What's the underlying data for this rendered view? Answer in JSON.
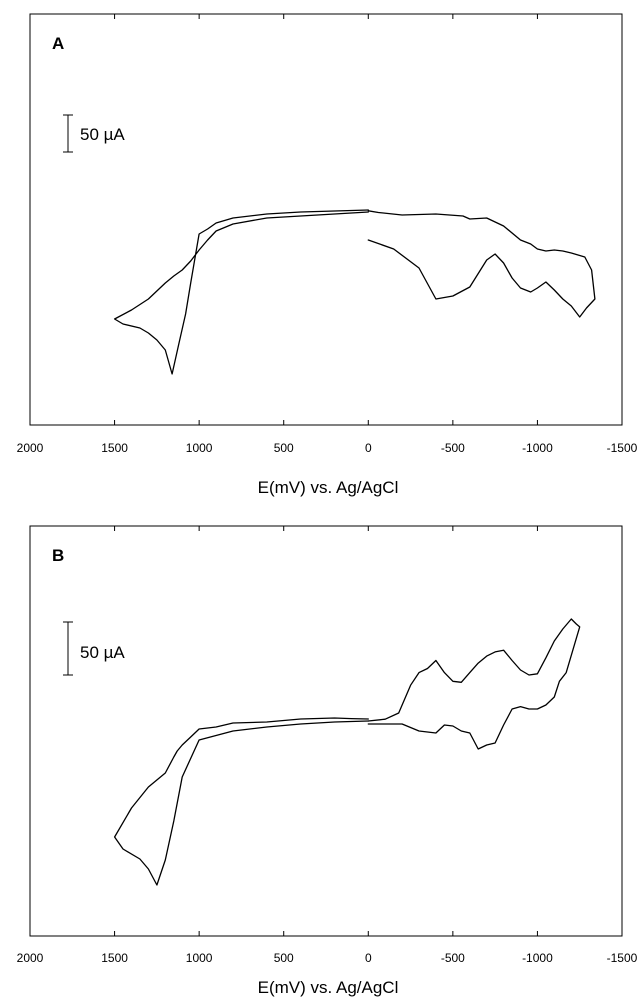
{
  "chart_data": [
    {
      "type": "line",
      "panel_label": "A",
      "xlabel": "E(mV) vs. Ag/AgCl",
      "xlim": [
        2000,
        -1500
      ],
      "x_ticks": [
        "2000",
        "1500",
        "1000",
        "500",
        "0",
        "-500",
        "-1000",
        "-1500"
      ],
      "scale_bar": {
        "label": "50 µA",
        "value_uA": 50
      },
      "grid": false,
      "series": [
        {
          "x": [
            0,
            -60,
            -200,
            -400,
            -560,
            -600,
            -700,
            -800,
            -900,
            -960,
            -1000,
            -1050,
            -1100,
            -1150,
            -1200,
            -1280,
            -1320,
            -1340,
            -1290,
            -1250,
            -1200,
            -1150,
            -1100,
            -1050,
            -1000,
            -960,
            -900,
            -850,
            -800,
            -750,
            -700,
            -600,
            -500,
            -400,
            -300,
            -150,
            0
          ],
          "y": [
            -1.0,
            -3.1,
            -6.3,
            -5.0,
            -7.5,
            -11.3,
            -10.0,
            -20.0,
            -37.5,
            -42.5,
            -48.8,
            -51.3,
            -50.0,
            -51.3,
            -53.8,
            -58.8,
            -75.0,
            -111.3,
            -122.5,
            -133.8,
            -120.0,
            -111.3,
            -100.0,
            -90.0,
            -97.5,
            -102.5,
            -97.5,
            -85.0,
            -66.3,
            -55.0,
            -62.5,
            -96.3,
            -107.5,
            -111.3,
            -72.5,
            -48.8,
            -37.5
          ]
        },
        {
          "x": [
            0,
            200,
            400,
            600,
            800,
            900,
            950,
            1000,
            1050,
            1100,
            1150,
            1200,
            1300,
            1400,
            1500,
            1450,
            1350,
            1300,
            1250,
            1200,
            1160,
            1120,
            1080,
            1050,
            1000,
            950,
            900,
            800,
            600,
            400,
            200,
            0
          ],
          "y": [
            -2.5,
            -5.0,
            -7.5,
            -10.0,
            -17.5,
            -26.3,
            -37.5,
            -50.0,
            -63.8,
            -75.0,
            -82.5,
            -91.3,
            -111.3,
            -125.0,
            -136.3,
            -142.5,
            -147.5,
            -153.8,
            -162.5,
            -175.0,
            -205.0,
            -167.5,
            -130.0,
            -91.3,
            -30.0,
            -23.8,
            -16.3,
            -10.0,
            -5.0,
            -2.5,
            -1.3,
            0
          ]
        }
      ]
    },
    {
      "type": "line",
      "panel_label": "B",
      "xlabel": "E(mV) vs. Ag/AgCl",
      "xlim": [
        2000,
        -1500
      ],
      "x_ticks": [
        "2000",
        "1500",
        "1000",
        "500",
        "0",
        "-500",
        "-1000",
        "-1500"
      ],
      "scale_bar": {
        "label": "50 µA",
        "value_uA": 50
      },
      "grid": false,
      "series": [
        {
          "x": [
            0,
            -100,
            -180,
            -250,
            -300,
            -350,
            -400,
            -450,
            -500,
            -550,
            -600,
            -650,
            -700,
            -750,
            -800,
            -850,
            -900,
            -950,
            -1000,
            -1050,
            -1100,
            -1150,
            -1200,
            -1230,
            -1250,
            -1170,
            -1130,
            -1100,
            -1050,
            -1000,
            -950,
            -900,
            -850,
            -800,
            -750,
            -700,
            -650,
            -600,
            -550,
            -500,
            -450,
            -400,
            -300,
            -200,
            0
          ],
          "y": [
            -4.7,
            -2.6,
            4.7,
            37.4,
            52.2,
            57.1,
            66.5,
            52.2,
            42.0,
            40.8,
            52.2,
            63.4,
            71.7,
            76.6,
            78.6,
            66.5,
            55.3,
            49.4,
            50.8,
            69.6,
            89.4,
            103.5,
            115.3,
            109.4,
            106.0,
            52.2,
            42.0,
            23.5,
            14.1,
            9.4,
            9.4,
            12.2,
            9.4,
            -9.4,
            -30.6,
            -32.9,
            -37.7,
            -18.8,
            -16.5,
            -10.6,
            -9.4,
            -18.8,
            -16.5,
            -8.2,
            -8.2
          ]
        },
        {
          "x": [
            0,
            100,
            200,
            400,
            600,
            800,
            900,
            1000,
            1050,
            1100,
            1130,
            1150,
            1200,
            1300,
            1400,
            1500,
            1450,
            1350,
            1300,
            1250,
            1200,
            1150,
            1100,
            1000,
            800,
            600,
            400,
            200,
            0
          ],
          "y": [
            -2.3,
            -1.9,
            -1.2,
            -2.3,
            -5.9,
            -7.1,
            -11.8,
            -14.1,
            -23.5,
            -32.9,
            -40.0,
            -47.1,
            -65.9,
            -82.4,
            -107.1,
            -141.2,
            -155.3,
            -167.1,
            -178.8,
            -197.6,
            -168.2,
            -122.4,
            -70.6,
            -27.1,
            -16.5,
            -11.8,
            -8.2,
            -5.9,
            -4.7
          ]
        }
      ]
    }
  ]
}
